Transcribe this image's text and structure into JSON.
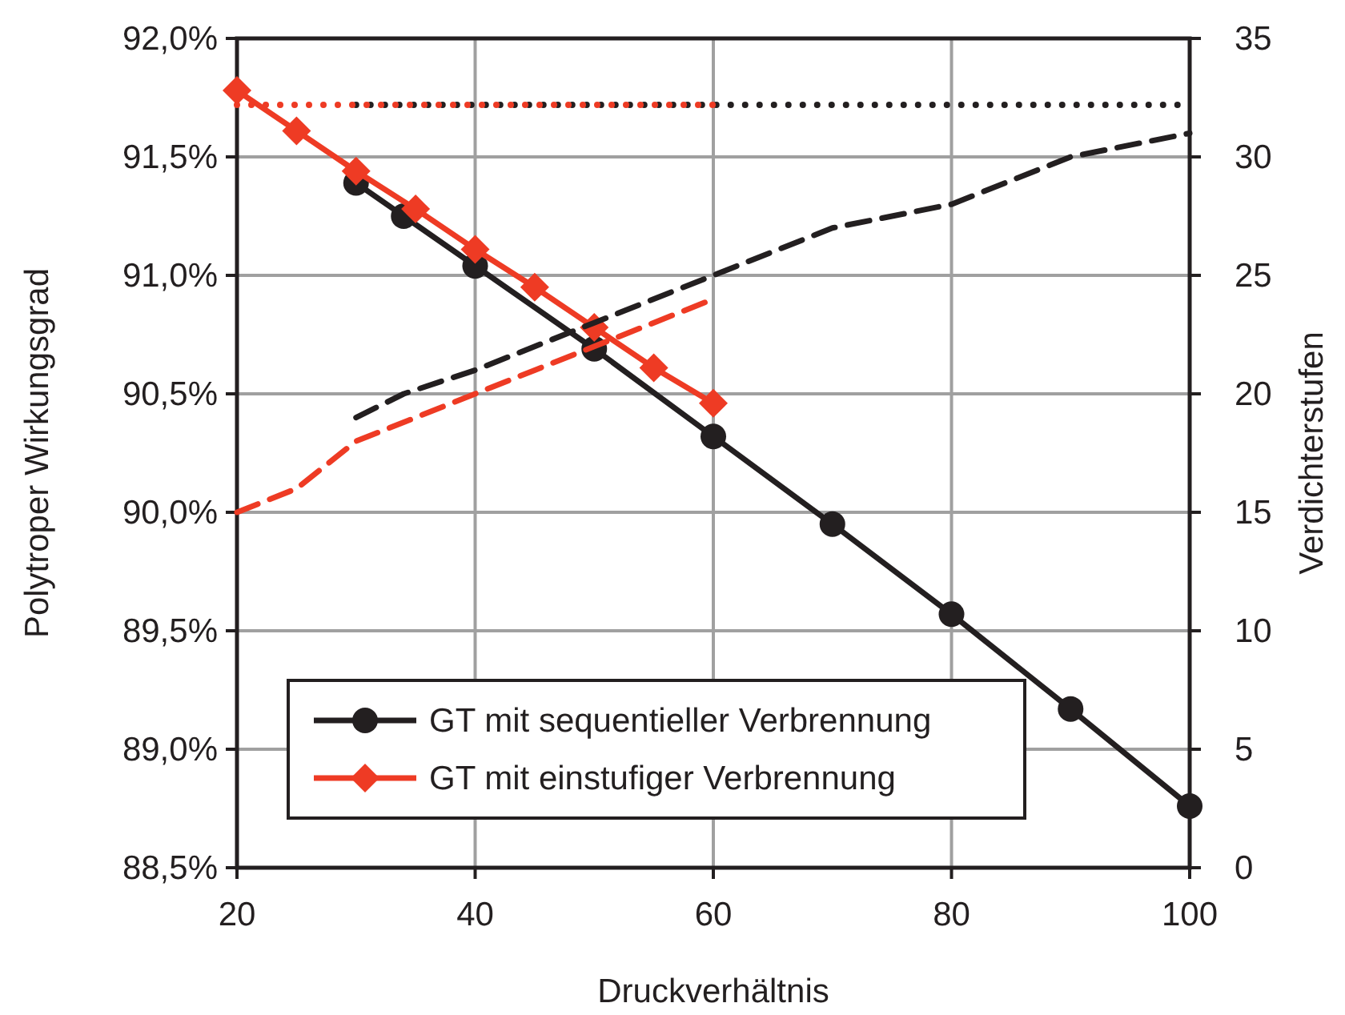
{
  "chart_data": {
    "type": "line",
    "xlabel": "Druckverhältnis",
    "ylabel": "Polytroper Wirkungsgrad",
    "y2label": "Verdichterstufen",
    "xlim": [
      20,
      100
    ],
    "xticks": [
      20,
      40,
      60,
      80,
      100
    ],
    "ylim": [
      88.5,
      92.0
    ],
    "yticks": [
      {
        "value": 88.5,
        "label": "88,5%"
      },
      {
        "value": 89.0,
        "label": "89,0%"
      },
      {
        "value": 89.5,
        "label": "89,5%"
      },
      {
        "value": 90.0,
        "label": "90,0%"
      },
      {
        "value": 90.5,
        "label": "90,5%"
      },
      {
        "value": 91.0,
        "label": "91,0%"
      },
      {
        "value": 91.5,
        "label": "91,5%"
      },
      {
        "value": 92.0,
        "label": "92,0%"
      }
    ],
    "y2lim": [
      0,
      35
    ],
    "y2ticks": [
      0,
      5,
      10,
      15,
      20,
      25,
      30,
      35
    ],
    "grid": true,
    "legend": "bottom",
    "series": [
      {
        "name": "GT mit sequentieller Verbrennung",
        "color": "#231f20",
        "marker": "circle",
        "line_style": "solid",
        "x": [
          30,
          34,
          40,
          50,
          60,
          70,
          80,
          90,
          100
        ],
        "values": [
          91.39,
          91.25,
          91.04,
          90.69,
          90.32,
          89.95,
          89.57,
          89.17,
          88.76
        ]
      },
      {
        "name": "GT mit einstufiger Verbrennung",
        "color": "#ee3b24",
        "marker": "diamond",
        "line_style": "solid",
        "x": [
          20,
          25,
          30,
          35,
          40,
          45,
          50,
          55,
          60
        ],
        "values": [
          91.78,
          91.61,
          91.44,
          91.28,
          91.11,
          90.95,
          90.78,
          90.61,
          90.46
        ]
      },
      {
        "color": "#231f20",
        "marker": "none",
        "line_style": "dashed",
        "axis": "y2",
        "x": [
          30,
          34,
          40,
          50,
          60,
          70,
          80,
          90,
          100
        ],
        "values": [
          19,
          20,
          21,
          23,
          25,
          27,
          28,
          30,
          31
        ]
      },
      {
        "color": "#ee3b24",
        "marker": "none",
        "line_style": "dashed",
        "axis": "y2",
        "x": [
          20,
          25,
          30,
          35,
          40,
          45,
          50,
          55,
          60
        ],
        "values": [
          15,
          16,
          18,
          19,
          20,
          21,
          22,
          23,
          24
        ]
      },
      {
        "color": "#231f20",
        "marker": "none",
        "line_style": "dotted",
        "axis": "y2",
        "x": [
          30,
          100
        ],
        "values": [
          32.2,
          32.2
        ]
      },
      {
        "color": "#ee3b24",
        "marker": "none",
        "line_style": "dotted",
        "axis": "y2",
        "x": [
          20,
          60
        ],
        "values": [
          32.2,
          32.2
        ]
      }
    ]
  }
}
